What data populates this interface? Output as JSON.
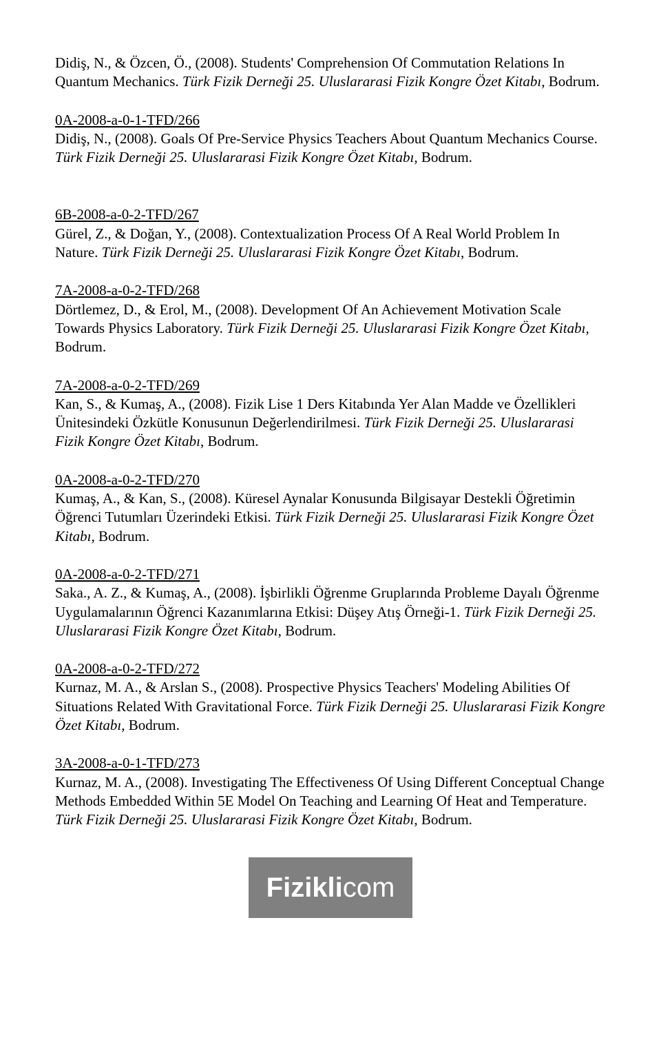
{
  "entries": [
    {
      "id": "",
      "text_before_italic": "Didiş, N., & Özcen, Ö., (2008). Students' Comprehension Of Commutation Relations In Quantum Mechanics. ",
      "italic": "Türk Fizik Derneği 25. Uluslararasi Fizik Kongre Özet Kitabı",
      "text_after_italic": ", Bodrum."
    },
    {
      "id": "0A-2008-a-0-1-TFD/266",
      "text_before_italic": "Didiş, N., (2008). Goals Of Pre-Service Physics Teachers About Quantum Mechanics Course. ",
      "italic": "Türk Fizik Derneği 25. Uluslararasi Fizik Kongre Özet Kitabı",
      "text_after_italic": ", Bodrum."
    },
    {
      "id": "6B-2008-a-0-2-TFD/267",
      "text_before_italic": "Gürel, Z., & Doğan, Y., (2008). Contextualization Process Of A Real World Problem In Nature. ",
      "italic": "Türk Fizik Derneği 25. Uluslararasi Fizik Kongre Özet Kitabı",
      "text_after_italic": ", Bodrum."
    },
    {
      "id": "7A-2008-a-0-2-TFD/268",
      "text_before_italic": "Dörtlemez, D., & Erol, M., (2008). Development Of An Achievement Motivation Scale Towards Physics Laboratory. ",
      "italic": "Türk Fizik Derneği 25. Uluslararasi Fizik Kongre Özet Kitabı",
      "text_after_italic": ", Bodrum."
    },
    {
      "id": "7A-2008-a-0-2-TFD/269",
      "text_before_italic": "Kan, S., & Kumaş, A., (2008). Fizik Lise 1 Ders Kitabında Yer Alan Madde ve Özellikleri Ünitesindeki Özkütle Konusunun Değerlendirilmesi. ",
      "italic": "Türk Fizik Derneği 25. Uluslararasi Fizik Kongre Özet Kitabı",
      "text_after_italic": ", Bodrum."
    },
    {
      "id": "0A-2008-a-0-2-TFD/270",
      "text_before_italic": "Kumaş, A., & Kan, S., (2008). Küresel Aynalar Konusunda Bilgisayar Destekli Öğretimin Öğrenci Tutumları Üzerindeki Etkisi. ",
      "italic": "Türk Fizik Derneği 25. Uluslararasi Fizik Kongre Özet Kitabı",
      "text_after_italic": ", Bodrum."
    },
    {
      "id": "0A-2008-a-0-2-TFD/271",
      "text_before_italic": "Saka., A. Z., & Kumaş, A., (2008). İşbirlikli Öğrenme Gruplarında Probleme Dayalı Öğrenme Uygulamalarının Öğrenci Kazanımlarına Etkisi: Düşey Atış Örneği-1. ",
      "italic": "Türk Fizik Derneği 25. Uluslararasi Fizik Kongre Özet Kitabı",
      "text_after_italic": ", Bodrum."
    },
    {
      "id": "0A-2008-a-0-2-TFD/272",
      "text_before_italic": "Kurnaz, M. A., & Arslan S., (2008). Prospective Physics Teachers' Modeling Abilities Of Situations Related With Gravitational Force. ",
      "italic": "Türk Fizik Derneği 25. Uluslararasi Fizik Kongre Özet Kitabı",
      "text_after_italic": ", Bodrum."
    },
    {
      "id": "3A-2008-a-0-1-TFD/273",
      "text_before_italic": "Kurnaz, M. A., (2008). Investigating The Effectiveness Of Using Different Conceptual Change Methods Embedded Within 5E Model On Teaching and Learning Of Heat and Temperature. ",
      "italic": "Türk Fizik Derneği 25. Uluslararasi Fizik Kongre Özet Kitabı",
      "text_after_italic": ", Bodrum."
    }
  ],
  "logo": {
    "bold": "Fizikli",
    "thin": "com",
    "bg_color": "#808080",
    "text_color": "#ffffff"
  }
}
